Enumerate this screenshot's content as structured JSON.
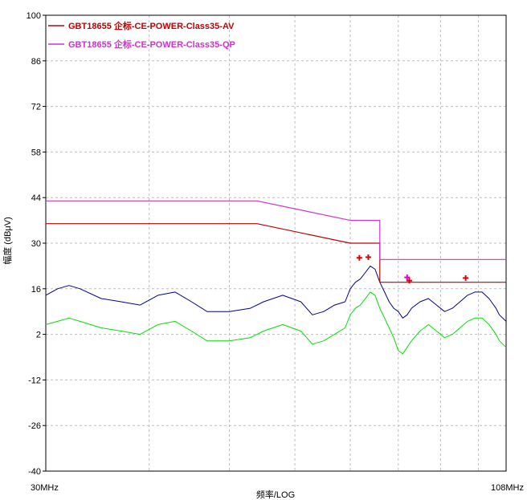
{
  "chart_data": {
    "type": "line",
    "title": "",
    "xlabel": "频率/LOG",
    "ylabel": "幅度 (dBμV)",
    "xscale": "log",
    "xlim": [
      30,
      108
    ],
    "x_tick_labels": [
      "30MHz",
      "108MHz"
    ],
    "ylim": [
      -40,
      100
    ],
    "y_ticks": [
      100,
      86,
      72,
      58,
      44,
      30,
      16,
      2,
      -12,
      -26,
      -40
    ],
    "grid": true,
    "legend_position": "top-left",
    "colors": {
      "limit_av": "#c00000",
      "limit_qp": "#cc33cc",
      "trace_blue": "#000099",
      "trace_green": "#00e000",
      "marker_red": "#dd0000",
      "marker_magenta": "#dd00dd"
    },
    "series": [
      {
        "name": "GBT18655 企标-CE-POWER-Class35-AV",
        "role": "limit",
        "x": [
          30,
          54,
          70,
          70,
          76,
          76,
          108
        ],
        "values": [
          36,
          36,
          30,
          30,
          30,
          18,
          18
        ]
      },
      {
        "name": "GBT18655 企标-CE-POWER-Class35-QP",
        "role": "limit",
        "x": [
          30,
          54,
          70,
          76,
          76,
          108
        ],
        "values": [
          43,
          43,
          37,
          37,
          25,
          25
        ]
      },
      {
        "role": "measurement",
        "x": [
          30,
          31,
          32,
          33,
          35,
          37,
          39,
          41,
          43,
          45,
          47,
          50,
          53,
          55,
          58,
          61,
          63,
          65,
          67,
          69,
          70,
          71,
          72,
          73,
          74,
          75,
          76,
          77,
          78,
          79,
          80,
          81,
          82,
          83,
          85,
          87,
          89,
          91,
          93,
          95,
          97,
          99,
          101,
          103,
          105,
          106,
          108
        ],
        "values": [
          14,
          16,
          17,
          16,
          13,
          12,
          11,
          14,
          15,
          12,
          9,
          9,
          10,
          12,
          14,
          12,
          8,
          9,
          11,
          12,
          16,
          18,
          19,
          21,
          23,
          22,
          18,
          15,
          12,
          10,
          9,
          7,
          8,
          10,
          12,
          13,
          11,
          9,
          10,
          12,
          14,
          15,
          15,
          13,
          10,
          8,
          6
        ]
      },
      {
        "role": "measurement",
        "x": [
          30,
          31,
          32,
          33,
          35,
          37,
          39,
          41,
          43,
          45,
          47,
          50,
          53,
          55,
          58,
          61,
          63,
          65,
          67,
          69,
          70,
          71,
          72,
          73,
          74,
          75,
          76,
          77,
          78,
          79,
          80,
          81,
          82,
          83,
          85,
          87,
          89,
          91,
          93,
          95,
          97,
          99,
          101,
          103,
          105,
          106,
          108
        ],
        "values": [
          5,
          6,
          7,
          6,
          4,
          3,
          2,
          5,
          6,
          3,
          0,
          0,
          1,
          3,
          5,
          3,
          -1,
          0,
          2,
          4,
          8,
          10,
          11,
          13,
          15,
          14,
          10,
          7,
          4,
          1,
          -3,
          -4,
          -2,
          0,
          3,
          5,
          3,
          1,
          2,
          4,
          6,
          7,
          7,
          5,
          2,
          0,
          -2
        ]
      }
    ],
    "markers": [
      {
        "x": 71.8,
        "y": 25.5,
        "color": "marker_red"
      },
      {
        "x": 73.6,
        "y": 25.7,
        "color": "marker_red"
      },
      {
        "x": 82.0,
        "y": 19.5,
        "color": "marker_magenta"
      },
      {
        "x": 82.5,
        "y": 18.5,
        "color": "marker_red"
      },
      {
        "x": 96.5,
        "y": 19.3,
        "color": "marker_red"
      }
    ]
  }
}
